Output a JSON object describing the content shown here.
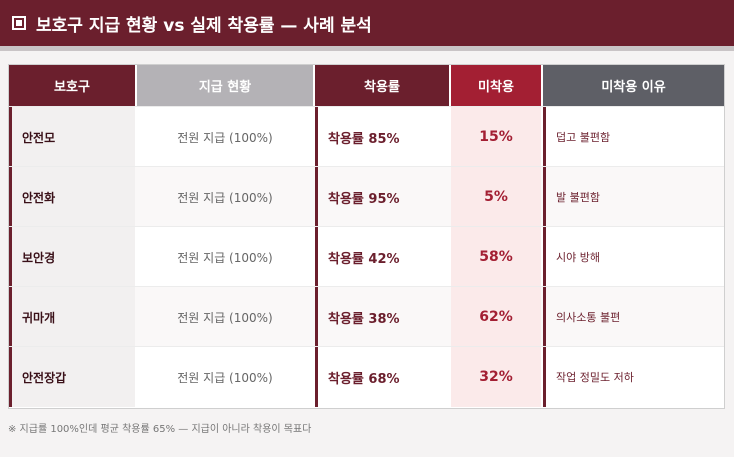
{
  "header": {
    "title": "보호구 지급 현황 vs 실제 착용률 — 사례 분석"
  },
  "table": {
    "columns": [
      "보호구",
      "지급 현황",
      "착용률",
      "미착용",
      "미착용 이유"
    ],
    "rows": [
      {
        "item": "안전모",
        "supply": "전원 지급 (100%)",
        "wear": "착용률 85%",
        "nonwear": "15%",
        "reason": "덥고 불편함"
      },
      {
        "item": "안전화",
        "supply": "전원 지급 (100%)",
        "wear": "착용률 95%",
        "nonwear": "5%",
        "reason": "발 불편함"
      },
      {
        "item": "보안경",
        "supply": "전원 지급 (100%)",
        "wear": "착용률 42%",
        "nonwear": "58%",
        "reason": "시야 방해"
      },
      {
        "item": "귀마개",
        "supply": "전원 지급 (100%)",
        "wear": "착용률 38%",
        "nonwear": "62%",
        "reason": "의사소통 불편"
      },
      {
        "item": "안전장갑",
        "supply": "전원 지급 (100%)",
        "wear": "착용률 68%",
        "nonwear": "32%",
        "reason": "작업 정밀도 저하"
      }
    ]
  },
  "footer": {
    "note": "※ 지급률 100%인데 평균 착용률 65% — 지급이 아니라 착용이 목표다"
  },
  "colors": {
    "brand": "#6b1f2d",
    "accent": "#a31f33",
    "gray": "#b4b2b6",
    "dark": "#5e5f66"
  }
}
